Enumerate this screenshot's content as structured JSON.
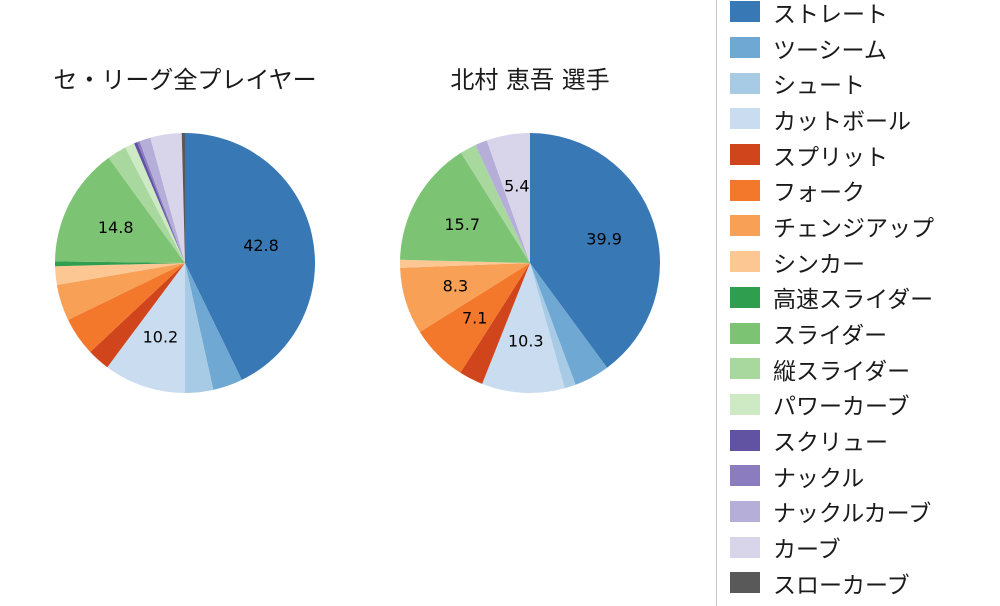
{
  "figure": {
    "background": "#ffffff"
  },
  "titles": {
    "left": "セ・リーグ全プレイヤー",
    "right": "北村 恵吾 選手"
  },
  "legend": {
    "position": "right",
    "border_color": "#c9c9c9",
    "items": [
      {
        "label": "ストレート",
        "color": "#3879b5"
      },
      {
        "label": "ツーシーム",
        "color": "#6fa8d2"
      },
      {
        "label": "シュート",
        "color": "#a7cbe4"
      },
      {
        "label": "カットボール",
        "color": "#c9dcf0"
      },
      {
        "label": "スプリット",
        "color": "#d0451b"
      },
      {
        "label": "フォーク",
        "color": "#f3782b"
      },
      {
        "label": "チェンジアップ",
        "color": "#f8a055"
      },
      {
        "label": "シンカー",
        "color": "#fcc792"
      },
      {
        "label": "高速スライダー",
        "color": "#2f9e4f"
      },
      {
        "label": "スライダー",
        "color": "#7cc474"
      },
      {
        "label": "縦スライダー",
        "color": "#a8d89e"
      },
      {
        "label": "パワーカーブ",
        "color": "#cdeac4"
      },
      {
        "label": "スクリュー",
        "color": "#6152a2"
      },
      {
        "label": "ナックル",
        "color": "#8b7cbf"
      },
      {
        "label": "ナックルカーブ",
        "color": "#b4aed8"
      },
      {
        "label": "カーブ",
        "color": "#d8d5ea"
      },
      {
        "label": "スローカーブ",
        "color": "#595959"
      }
    ]
  },
  "chart_data": [
    {
      "type": "pie",
      "title": "セ・リーグ全プレイヤー",
      "units": "percent",
      "start_angle": "top",
      "direction": "clockwise",
      "label_threshold": 5,
      "segments": [
        {
          "label": "ストレート",
          "value": 42.8
        },
        {
          "label": "ツーシーム",
          "value": 3.7
        },
        {
          "label": "シュート",
          "value": 3.5
        },
        {
          "label": "カットボール",
          "value": 10.2
        },
        {
          "label": "スプリット",
          "value": 2.8
        },
        {
          "label": "フォーク",
          "value": 4.8
        },
        {
          "label": "チェンジアップ",
          "value": 4.5
        },
        {
          "label": "シンカー",
          "value": 2.3
        },
        {
          "label": "高速スライダー",
          "value": 0.6
        },
        {
          "label": "スライダー",
          "value": 14.8
        },
        {
          "label": "縦スライダー",
          "value": 2.4
        },
        {
          "label": "パワーカーブ",
          "value": 1.2
        },
        {
          "label": "スクリュー",
          "value": 0.4
        },
        {
          "label": "ナックル",
          "value": 0.3
        },
        {
          "label": "ナックルカーブ",
          "value": 1.4
        },
        {
          "label": "カーブ",
          "value": 3.9
        },
        {
          "label": "スローカーブ",
          "value": 0.4
        }
      ]
    },
    {
      "type": "pie",
      "title": "北村 恵吾 選手",
      "units": "percent",
      "start_angle": "top",
      "direction": "clockwise",
      "label_threshold": 5,
      "segments": [
        {
          "label": "ストレート",
          "value": 39.9
        },
        {
          "label": "ツーシーム",
          "value": 4.4
        },
        {
          "label": "シュート",
          "value": 1.4
        },
        {
          "label": "カットボール",
          "value": 10.3
        },
        {
          "label": "スプリット",
          "value": 3.0
        },
        {
          "label": "フォーク",
          "value": 7.1
        },
        {
          "label": "チェンジアップ",
          "value": 8.3
        },
        {
          "label": "シンカー",
          "value": 1.0
        },
        {
          "label": "スライダー",
          "value": 15.7
        },
        {
          "label": "縦スライダー",
          "value": 2.0
        },
        {
          "label": "ナックルカーブ",
          "value": 1.5
        },
        {
          "label": "カーブ",
          "value": 5.4
        }
      ]
    }
  ]
}
